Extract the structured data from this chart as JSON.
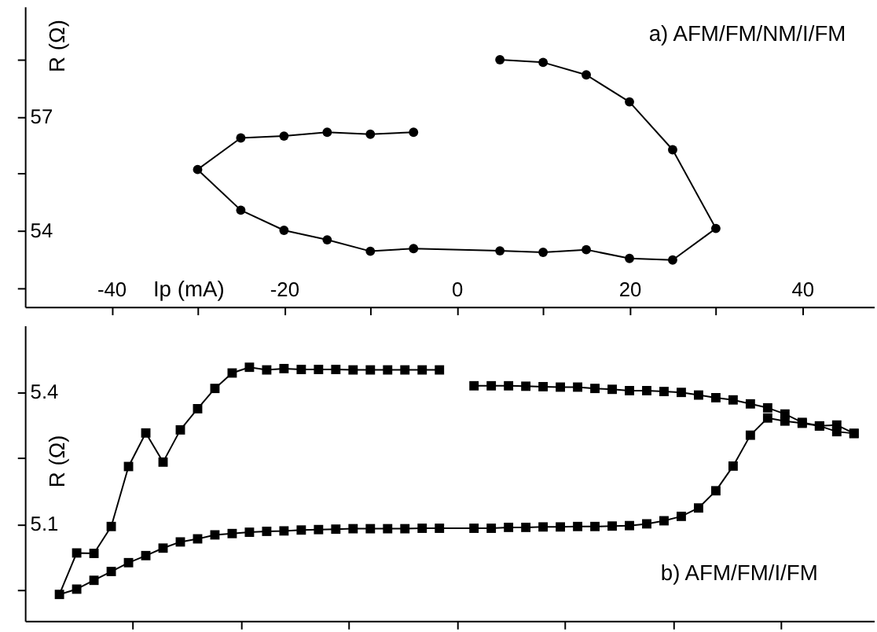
{
  "chart_data": [
    {
      "type": "line",
      "ylabel": "R (Ω)",
      "xlabel": "Ip (mA)",
      "annotations": [
        "a) AFM/FM/NM/I/FM"
      ],
      "marker": "circle",
      "grid": false,
      "line_style": "solid",
      "xlim": [
        -50,
        48.3
      ],
      "xticks": [
        -40,
        {
          "value": -30,
          "label": null
        },
        -20,
        {
          "value": -10,
          "label": null
        },
        0,
        {
          "value": 10,
          "label": null
        },
        20,
        {
          "value": 30,
          "label": null
        },
        40
      ],
      "ylim": [
        52,
        59.9
      ],
      "yticks": [
        {
          "value": 52.5,
          "label": null
        },
        54,
        {
          "value": 55.5,
          "label": null
        },
        57,
        {
          "value": 58.5,
          "label": null
        }
      ],
      "series": [
        {
          "color": "#000000",
          "x": [
            5,
            10,
            15,
            20,
            25,
            30,
            25,
            20,
            15,
            10,
            5,
            -5,
            -10,
            -15,
            -20,
            -25,
            -30,
            -25,
            -20,
            -15,
            -10,
            -5
          ],
          "values": [
            58.5,
            58.43,
            58.1,
            57.39,
            56.13,
            54.06,
            53.23,
            53.27,
            53.5,
            53.43,
            53.47,
            53.53,
            53.46,
            53.76,
            54.01,
            54.54,
            55.61,
            56.44,
            56.49,
            56.59,
            56.54,
            56.59
          ]
        }
      ]
    },
    {
      "type": "line",
      "ylabel": "R (Ω)",
      "annotations": [
        "b) AFM/FM/I/FM"
      ],
      "marker": "square",
      "grid": false,
      "line_style": "solid",
      "tick_labels": "y",
      "xlim": [
        -50,
        48.3
      ],
      "xticks": [
        {
          "value": -37.5,
          "label": null
        },
        {
          "value": -25,
          "label": null
        },
        {
          "value": -12.5,
          "label": null
        },
        {
          "value": 0,
          "label": null
        },
        {
          "value": 12.5,
          "label": null
        },
        {
          "value": 25,
          "label": null
        },
        {
          "value": 37.5,
          "label": null
        }
      ],
      "ylim": [
        4.88,
        5.55
      ],
      "yticks": [
        {
          "value": 4.95,
          "label": null
        },
        5.1,
        {
          "value": 5.25,
          "label": null
        },
        5.4
      ],
      "series": [
        {
          "color": "#000000",
          "x": [
            -2,
            -4,
            -6,
            -8,
            -10,
            -12,
            -14,
            -16,
            -18,
            -20,
            -22,
            -24,
            -26,
            -28,
            -30,
            -32,
            -34,
            -36,
            -38,
            -40,
            -42,
            -44,
            -46,
            -44,
            -42,
            -40,
            -38,
            -36,
            -34,
            -32,
            -30,
            -28,
            -26,
            -24,
            -22,
            -20,
            -18,
            -16,
            -14,
            -12,
            -10,
            -8,
            -6,
            -4,
            -2,
            2,
            4,
            6,
            8,
            10,
            12,
            14,
            16,
            18,
            20,
            22,
            24,
            26,
            28,
            30,
            32,
            34,
            36,
            38,
            40,
            42,
            44,
            46
          ],
          "values": [
            5.449,
            5.449,
            5.449,
            5.449,
            5.449,
            5.449,
            5.45,
            5.45,
            5.45,
            5.452,
            5.449,
            5.455,
            5.442,
            5.407,
            5.361,
            5.313,
            5.24,
            5.306,
            5.23,
            5.094,
            5.033,
            5.034,
            4.94,
            4.952,
            4.972,
            4.992,
            5.012,
            5.028,
            5.045,
            5.059,
            5.066,
            5.075,
            5.078,
            5.081,
            5.083,
            5.084,
            5.086,
            5.087,
            5.088,
            5.089,
            5.089,
            5.089,
            5.089,
            5.09,
            5.09,
            5.09,
            5.09,
            5.092,
            5.092,
            5.093,
            5.093,
            5.094,
            5.094,
            5.095,
            5.096,
            5.1,
            5.107,
            5.117,
            5.136,
            5.175,
            5.231,
            5.301,
            5.34,
            5.333,
            5.328,
            5.322,
            5.309,
            5.305
          ]
        },
        {
          "color": "#000000",
          "x": [
            2,
            4,
            6,
            8,
            10,
            12,
            14,
            16,
            18,
            20,
            22,
            24,
            26,
            28,
            30,
            32,
            34,
            36,
            38,
            40,
            42,
            44,
            46
          ],
          "values": [
            5.413,
            5.413,
            5.413,
            5.412,
            5.411,
            5.41,
            5.41,
            5.407,
            5.405,
            5.402,
            5.402,
            5.4,
            5.398,
            5.392,
            5.386,
            5.381,
            5.372,
            5.363,
            5.349,
            5.33,
            5.322,
            5.324,
            5.305
          ]
        }
      ]
    }
  ]
}
